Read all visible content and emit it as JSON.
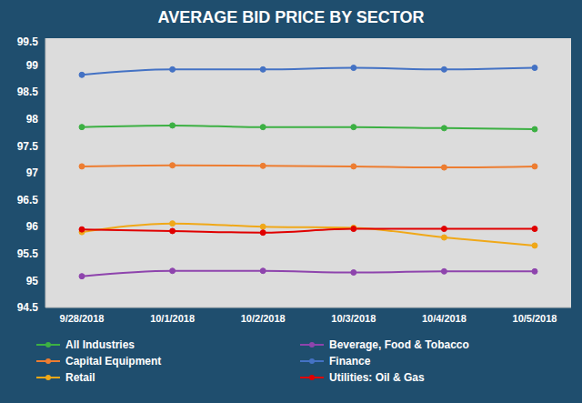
{
  "chart_data": {
    "type": "line",
    "title": "AVERAGE BID PRICE BY SECTOR",
    "categories": [
      "9/28/2018",
      "10/1/2018",
      "10/2/2018",
      "10/3/2018",
      "10/4/2018",
      "10/5/2018"
    ],
    "series": [
      {
        "name": "All Industries",
        "color": "#3cb043",
        "marker": "circle",
        "values": [
          97.85,
          97.88,
          97.85,
          97.85,
          97.83,
          97.81
        ]
      },
      {
        "name": "Beverage, Food & Tobacco",
        "color": "#8e44ad",
        "marker": "circle",
        "values": [
          95.08,
          95.18,
          95.18,
          95.15,
          95.17,
          95.17
        ]
      },
      {
        "name": "Capital Equipment",
        "color": "#ed7d31",
        "marker": "circle",
        "values": [
          97.12,
          97.14,
          97.13,
          97.12,
          97.1,
          97.12
        ]
      },
      {
        "name": "Finance",
        "color": "#4472c4",
        "marker": "circle",
        "values": [
          98.82,
          98.92,
          98.92,
          98.95,
          98.92,
          98.95
        ]
      },
      {
        "name": "Retail",
        "color": "#f0a818",
        "marker": "circle",
        "values": [
          95.9,
          96.06,
          96.0,
          95.98,
          95.8,
          95.65
        ]
      },
      {
        "name": "Utilities: Oil & Gas",
        "color": "#e00000",
        "marker": "circle",
        "values": [
          95.95,
          95.92,
          95.89,
          95.96,
          95.96,
          95.96
        ]
      }
    ],
    "ylim": [
      94.5,
      99.5
    ],
    "yticks": [
      94.5,
      95,
      95.5,
      96,
      96.5,
      97,
      97.5,
      98,
      98.5,
      99,
      99.5
    ],
    "grid": false,
    "legend": "bottom"
  }
}
